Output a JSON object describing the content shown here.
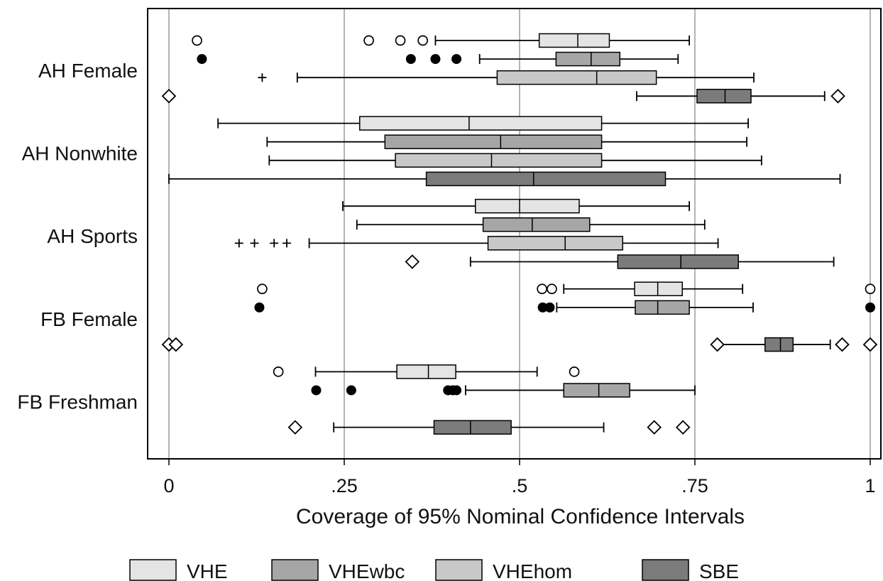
{
  "chart_data": {
    "type": "boxplot",
    "orientation": "horizontal",
    "xlabel": "Coverage of 95% Nominal Confidence Intervals",
    "xlim": [
      -0.012,
      1.01
    ],
    "x_ticks": [
      {
        "value": 0,
        "label": "0"
      },
      {
        "value": 0.25,
        "label": ".25"
      },
      {
        "value": 0.5,
        "label": ".5"
      },
      {
        "value": 0.75,
        "label": ".75"
      },
      {
        "value": 1,
        "label": "1"
      }
    ],
    "grid": "vertical",
    "legend_position": "bottom",
    "categories": [
      "AH Female",
      "AH Nonwhite",
      "AH Sports",
      "FB Female",
      "FB Freshman"
    ],
    "series": [
      {
        "name": "VHE",
        "color": "#e4e4e4",
        "outlier_marker": "hollow-circle",
        "boxes": [
          {
            "category": "AH Female",
            "whisker_low": 0.38,
            "q1": 0.528,
            "median": 0.583,
            "q3": 0.628,
            "whisker_high": 0.742,
            "outliers": [
              0.04,
              0.285,
              0.33,
              0.362
            ]
          },
          {
            "category": "AH Nonwhite",
            "whisker_low": 0.07,
            "q1": 0.272,
            "median": 0.428,
            "q3": 0.617,
            "whisker_high": 0.826,
            "outliers": []
          },
          {
            "category": "AH Sports",
            "whisker_low": 0.248,
            "q1": 0.437,
            "median": 0.5,
            "q3": 0.585,
            "whisker_high": 0.742,
            "outliers": []
          },
          {
            "category": "FB Female",
            "whisker_low": 0.563,
            "q1": 0.664,
            "median": 0.697,
            "q3": 0.732,
            "whisker_high": 0.818,
            "outliers": [
              0.133,
              0.532,
              0.546,
              1.0
            ]
          },
          {
            "category": "FB Freshman",
            "whisker_low": 0.209,
            "q1": 0.325,
            "median": 0.37,
            "q3": 0.409,
            "whisker_high": 0.525,
            "outliers": [
              0.156,
              0.578
            ]
          }
        ]
      },
      {
        "name": "VHEwbc",
        "color": "#a6a6a6",
        "outlier_marker": "filled-circle",
        "boxes": [
          {
            "category": "AH Female",
            "whisker_low": 0.443,
            "q1": 0.552,
            "median": 0.602,
            "q3": 0.643,
            "whisker_high": 0.726,
            "outliers": [
              0.047,
              0.345,
              0.38,
              0.41
            ]
          },
          {
            "category": "AH Nonwhite",
            "whisker_low": 0.14,
            "q1": 0.308,
            "median": 0.473,
            "q3": 0.617,
            "whisker_high": 0.824,
            "outliers": []
          },
          {
            "category": "AH Sports",
            "whisker_low": 0.268,
            "q1": 0.448,
            "median": 0.518,
            "q3": 0.6,
            "whisker_high": 0.764,
            "outliers": []
          },
          {
            "category": "FB Female",
            "whisker_low": 0.553,
            "q1": 0.665,
            "median": 0.697,
            "q3": 0.742,
            "whisker_high": 0.833,
            "outliers": [
              0.129,
              0.533,
              0.543,
              1.0
            ]
          },
          {
            "category": "FB Freshman",
            "whisker_low": 0.423,
            "q1": 0.563,
            "median": 0.613,
            "q3": 0.657,
            "whisker_high": 0.75,
            "outliers": [
              0.21,
              0.26,
              0.398,
              0.405,
              0.41
            ]
          }
        ]
      },
      {
        "name": "VHEhom",
        "color": "#c8c8c8",
        "outlier_marker": "plus",
        "boxes": [
          {
            "category": "AH Female",
            "whisker_low": 0.183,
            "q1": 0.468,
            "median": 0.61,
            "q3": 0.695,
            "whisker_high": 0.834,
            "outliers": [
              0.133
            ]
          },
          {
            "category": "AH Nonwhite",
            "whisker_low": 0.143,
            "q1": 0.323,
            "median": 0.46,
            "q3": 0.617,
            "whisker_high": 0.845,
            "outliers": []
          },
          {
            "category": "AH Sports",
            "whisker_low": 0.2,
            "q1": 0.455,
            "median": 0.565,
            "q3": 0.647,
            "whisker_high": 0.783,
            "outliers": [
              0.1,
              0.122,
              0.15,
              0.168
            ]
          },
          {
            "category": "FB Freshman",
            "whisker_low": null,
            "q1": null,
            "median": null,
            "q3": null,
            "whisker_high": null,
            "outliers": []
          }
        ]
      },
      {
        "name": "SBE",
        "color": "#7b7b7b",
        "outlier_marker": "hollow-diamond",
        "boxes": [
          {
            "category": "AH Female",
            "whisker_low": 0.667,
            "q1": 0.753,
            "median": 0.793,
            "q3": 0.83,
            "whisker_high": 0.935,
            "outliers": [
              0.0,
              0.954
            ]
          },
          {
            "category": "AH Nonwhite",
            "whisker_low": 0.0,
            "q1": 0.367,
            "median": 0.52,
            "q3": 0.708,
            "whisker_high": 0.957,
            "outliers": []
          },
          {
            "category": "AH Sports",
            "whisker_low": 0.43,
            "q1": 0.64,
            "median": 0.73,
            "q3": 0.812,
            "whisker_high": 0.948,
            "outliers": [
              0.347
            ]
          },
          {
            "category": "FB Female",
            "whisker_low": 0.785,
            "q1": 0.85,
            "median": 0.872,
            "q3": 0.89,
            "whisker_high": 0.943,
            "outliers": [
              0.0,
              0.01,
              0.782,
              0.96,
              1.0
            ]
          },
          {
            "category": "FB Freshman",
            "whisker_low": 0.235,
            "q1": 0.378,
            "median": 0.43,
            "q3": 0.488,
            "whisker_high": 0.62,
            "outliers": [
              0.18,
              0.692,
              0.733
            ]
          }
        ]
      }
    ]
  }
}
